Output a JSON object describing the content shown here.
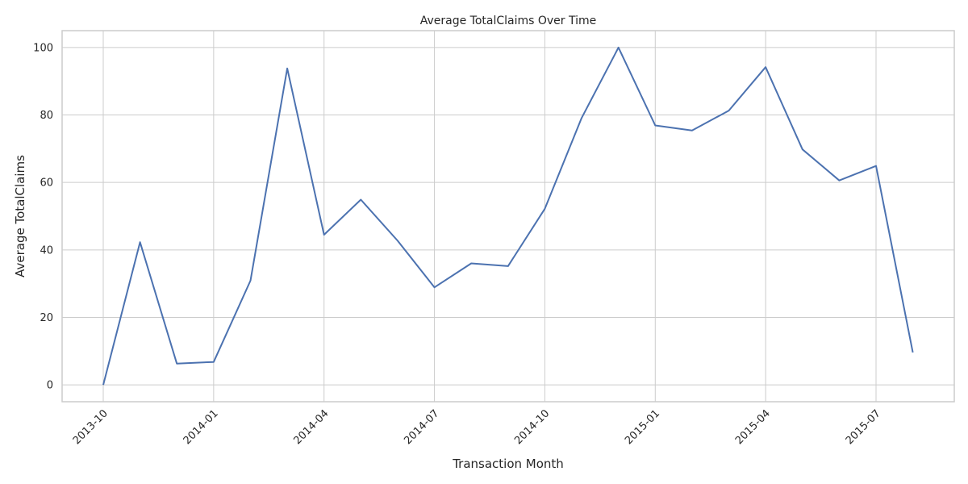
{
  "chart_data": {
    "type": "line",
    "title": "Average TotalClaims Over Time",
    "xlabel": "Transaction Month",
    "ylabel": "Average TotalClaims",
    "ylim": [
      -5,
      105
    ],
    "yticks": [
      0,
      20,
      40,
      60,
      80,
      100
    ],
    "xticks": [
      "2013-10",
      "2014-01",
      "2014-04",
      "2014-07",
      "2014-10",
      "2015-01",
      "2015-04",
      "2015-07"
    ],
    "grid": true,
    "legend": "none",
    "series": [
      {
        "color": "#4c72b0",
        "x": [
          "2013-10",
          "2013-11",
          "2013-12",
          "2014-01",
          "2014-02",
          "2014-03",
          "2014-04",
          "2014-05",
          "2014-06",
          "2014-07",
          "2014-08",
          "2014-09",
          "2014-10",
          "2014-11",
          "2014-12",
          "2015-01",
          "2015-02",
          "2015-03",
          "2015-04",
          "2015-05",
          "2015-06",
          "2015-07",
          "2015-08"
        ],
        "y": [
          0,
          42.3,
          6.3,
          6.8,
          30.9,
          93.8,
          44.5,
          54.9,
          42.7,
          28.9,
          36.0,
          35.2,
          52.2,
          79.1,
          100.0,
          76.9,
          75.4,
          81.3,
          94.2,
          69.8,
          60.6,
          64.9,
          9.6
        ]
      }
    ]
  }
}
